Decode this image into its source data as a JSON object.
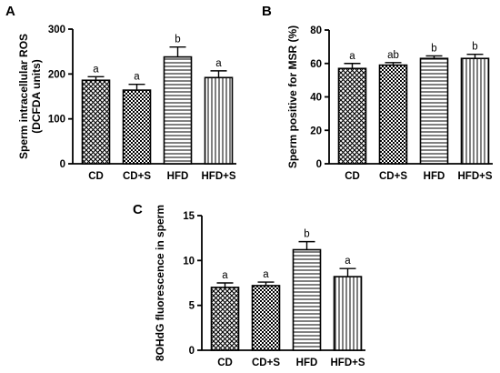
{
  "figure": {
    "background": "#ffffff",
    "bar_patterns": [
      "crosshatch",
      "checker",
      "horizontal-lines",
      "vertical-lines"
    ]
  },
  "chart_data": [
    {
      "id": "A",
      "type": "bar",
      "panel_label": "A",
      "ylabel": [
        "Sperm intracellular ROS",
        "(DCFDA units)"
      ],
      "categories": [
        "CD",
        "CD+S",
        "HFD",
        "HFD+S"
      ],
      "values": [
        186,
        164,
        238,
        192
      ],
      "errors": [
        8,
        13,
        22,
        15
      ],
      "significance": [
        "a",
        "a",
        "b",
        "a"
      ],
      "ylim": [
        0,
        300
      ],
      "yticks": [
        0,
        100,
        200,
        300
      ]
    },
    {
      "id": "B",
      "type": "bar",
      "panel_label": "B",
      "ylabel": [
        "Sperm positive for MSR (%)"
      ],
      "categories": [
        "CD",
        "CD+S",
        "HFD",
        "HFD+S"
      ],
      "values": [
        57,
        59,
        63,
        63
      ],
      "errors": [
        3,
        1.5,
        1.5,
        2.5
      ],
      "significance": [
        "a",
        "ab",
        "b",
        "b"
      ],
      "ylim": [
        0,
        80
      ],
      "yticks": [
        0,
        20,
        40,
        60,
        80
      ]
    },
    {
      "id": "C",
      "type": "bar",
      "panel_label": "C",
      "ylabel": [
        "8OHdG fluorescence in sperm"
      ],
      "categories": [
        "CD",
        "CD+S",
        "HFD",
        "HFD+S"
      ],
      "values": [
        7.0,
        7.2,
        11.2,
        8.2
      ],
      "errors": [
        0.5,
        0.4,
        0.9,
        0.9
      ],
      "significance": [
        "a",
        "a",
        "b",
        "a"
      ],
      "ylim": [
        0,
        15
      ],
      "yticks": [
        0,
        5,
        10,
        15
      ]
    }
  ]
}
